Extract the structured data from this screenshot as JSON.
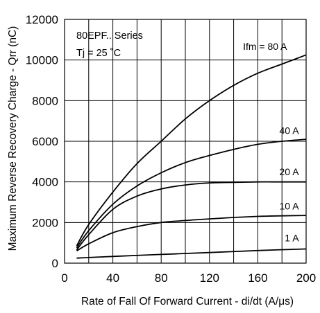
{
  "chart_data": {
    "type": "line",
    "xlabel": "Rate of Fall Of Forward Current - di/dt (A/μs)",
    "ylabel": "Maximum Reverse Recovery Charge - Qrr (nC)",
    "xlim": [
      0,
      200
    ],
    "ylim": [
      0,
      12000
    ],
    "xticks": [
      0,
      40,
      80,
      120,
      160,
      200
    ],
    "yticks": [
      0,
      2000,
      4000,
      6000,
      8000,
      10000,
      12000
    ],
    "grid": true,
    "annotations": [
      "80EPF.. Series",
      "Tj = 25 ˚C"
    ],
    "series": [
      {
        "name": "Ifm = 80 A",
        "x": [
          10,
          20,
          40,
          60,
          80,
          100,
          120,
          140,
          160,
          180,
          200
        ],
        "y": [
          850,
          1900,
          3500,
          4900,
          6000,
          7100,
          8000,
          8750,
          9350,
          9800,
          10250
        ]
      },
      {
        "name": "40 A",
        "x": [
          10,
          20,
          40,
          60,
          80,
          100,
          120,
          140,
          160,
          180,
          200
        ],
        "y": [
          750,
          1600,
          2900,
          3800,
          4450,
          4950,
          5300,
          5600,
          5850,
          6000,
          6100
        ]
      },
      {
        "name": "20 A",
        "x": [
          10,
          20,
          40,
          60,
          80,
          100,
          120,
          140,
          160,
          180,
          200
        ],
        "y": [
          650,
          1400,
          2650,
          3300,
          3650,
          3850,
          3950,
          3980,
          4000,
          4000,
          4000
        ]
      },
      {
        "name": "10 A",
        "x": [
          10,
          20,
          40,
          60,
          80,
          100,
          120,
          140,
          160,
          180,
          200
        ],
        "y": [
          600,
          950,
          1500,
          1800,
          2000,
          2100,
          2180,
          2250,
          2300,
          2330,
          2350
        ]
      },
      {
        "name": "1 A",
        "x": [
          10,
          40,
          80,
          120,
          160,
          200
        ],
        "y": [
          250,
          330,
          430,
          520,
          620,
          700
        ]
      }
    ]
  }
}
